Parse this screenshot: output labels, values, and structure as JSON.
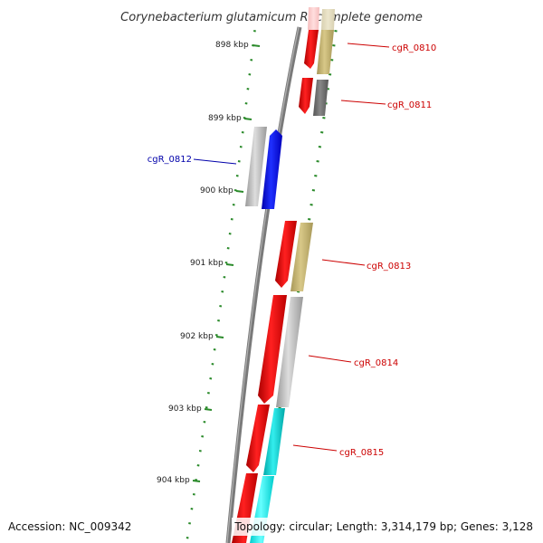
{
  "title": "Corynebacterium glutamicum R, complete genome",
  "footer": {
    "accession": "Accession: NC_009342",
    "topology": "Topology: circular; Length: 3,314,179 bp; Genes: 3,128"
  },
  "ticks": [
    "898 kbp",
    "899 kbp",
    "900 kbp",
    "901 kbp",
    "902 kbp",
    "903 kbp",
    "904 kbp"
  ],
  "genes": [
    {
      "name": "cgR_0810",
      "color": "#cc0000"
    },
    {
      "name": "cgR_0811",
      "color": "#cc0000"
    },
    {
      "name": "cgR_0812",
      "color": "#0000aa"
    },
    {
      "name": "cgR_0813",
      "color": "#cc0000"
    },
    {
      "name": "cgR_0814",
      "color": "#cc0000"
    },
    {
      "name": "cgR_0815",
      "color": "#cc0000"
    }
  ],
  "colors": {
    "backbone": "#808080",
    "cds_red": "#ff0000",
    "cds_blue": "#0000ff",
    "feature_khaki": "#c8b878",
    "feature_gray": "#b8b8b8",
    "feature_darkgray": "#707070",
    "feature_cyan": "#00cccc",
    "tick_green": "#2a8a2a"
  }
}
